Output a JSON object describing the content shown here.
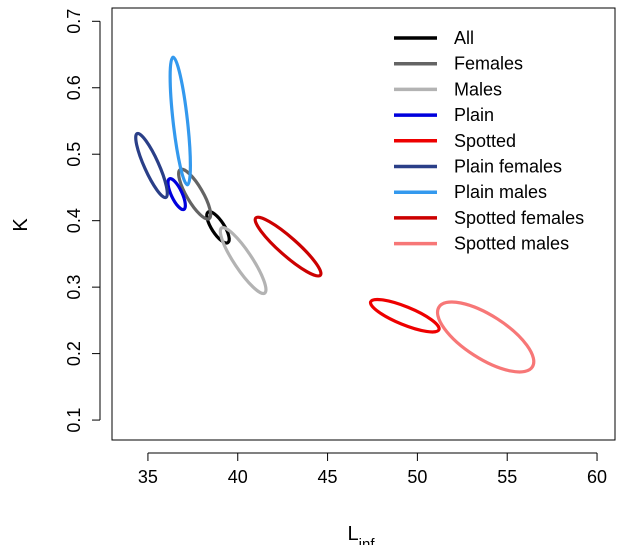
{
  "chart_data": {
    "type": "scatter",
    "title": "",
    "xlabel": "L",
    "xlabel_subscript": "inf",
    "ylabel": "K",
    "xlim": [
      33,
      61
    ],
    "ylim": [
      0.07,
      0.72
    ],
    "xticks": [
      35,
      40,
      45,
      50,
      55,
      60
    ],
    "yticks": [
      0.1,
      0.2,
      0.3,
      0.4,
      0.5,
      0.6,
      0.7
    ],
    "grid": false,
    "legend_position": "top-right",
    "series": [
      {
        "name": "All",
        "color": "#000000",
        "center": [
          38.9,
          0.39
        ],
        "p1": [
          39.45,
          0.367
        ],
        "p2": [
          38.35,
          0.413
        ],
        "minor_half_width": 0.35
      },
      {
        "name": "Females",
        "color": "#646464",
        "center": [
          37.6,
          0.44
        ],
        "p1": [
          38.4,
          0.403
        ],
        "p2": [
          36.8,
          0.477
        ],
        "minor_half_width": 0.45
      },
      {
        "name": "Males",
        "color": "#b3b3b3",
        "center": [
          40.3,
          0.34
        ],
        "p1": [
          41.5,
          0.291
        ],
        "p2": [
          39.1,
          0.389
        ],
        "minor_half_width": 0.5
      },
      {
        "name": "Plain",
        "color": "#0000dd",
        "center": [
          36.6,
          0.44
        ],
        "p1": [
          37.0,
          0.417
        ],
        "p2": [
          36.2,
          0.463
        ],
        "minor_half_width": 0.3
      },
      {
        "name": "Spotted",
        "color": "#ee0000",
        "center": [
          49.3,
          0.257
        ],
        "p1": [
          51.2,
          0.236
        ],
        "p2": [
          47.4,
          0.278
        ],
        "minor_half_width": 0.5
      },
      {
        "name": "Plain females",
        "color": "#2a3f88",
        "center": [
          35.2,
          0.483
        ],
        "p1": [
          36.0,
          0.435
        ],
        "p2": [
          34.4,
          0.531
        ],
        "minor_half_width": 0.4
      },
      {
        "name": "Plain males",
        "color": "#3399ee",
        "center": [
          36.8,
          0.55
        ],
        "p1": [
          37.2,
          0.455
        ],
        "p2": [
          36.4,
          0.647
        ],
        "minor_half_width": 0.4
      },
      {
        "name": "Spotted females",
        "color": "#cc0000",
        "center": [
          42.8,
          0.361
        ],
        "p1": [
          44.6,
          0.318
        ],
        "p2": [
          41.0,
          0.404
        ],
        "minor_half_width": 0.5
      },
      {
        "name": "Spotted males",
        "color": "#f77777",
        "center": [
          53.8,
          0.225
        ],
        "p1": [
          56.4,
          0.18
        ],
        "p2": [
          51.2,
          0.27
        ],
        "minor_half_width": 1.2
      }
    ]
  }
}
